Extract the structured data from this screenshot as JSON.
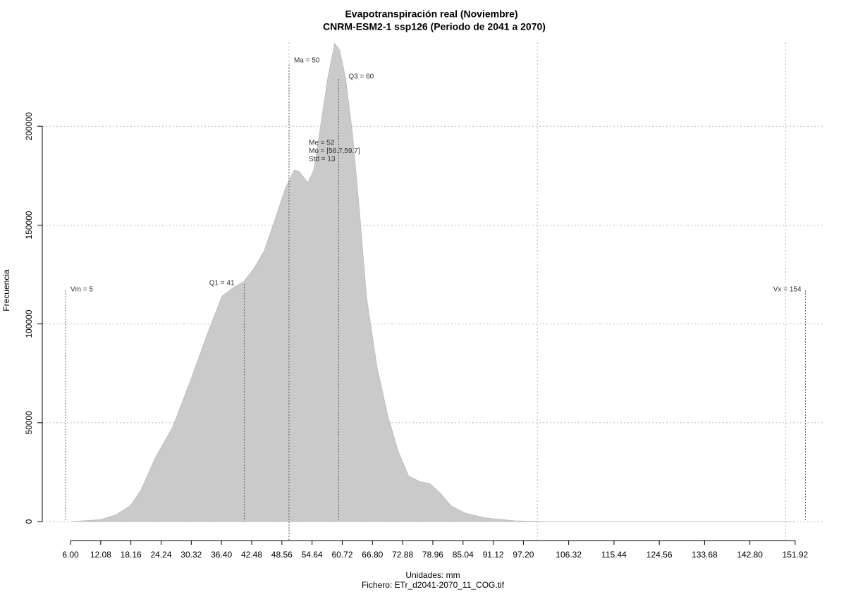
{
  "chart_data": {
    "type": "area",
    "title": "Evapotranspiración real (Noviembre)",
    "subtitle": "CNRM-ESM2-1 ssp126 (Periodo de 2041 a 2070)",
    "x_label": "Unidades: mm",
    "caption": "Fichero: ETr_d2041-2070_11_COG.tif",
    "y_label": "Frecuencia",
    "color": "#cacaca",
    "x": [
      6.0,
      12.1,
      15.2,
      18.1,
      20.2,
      23.0,
      26.6,
      30.1,
      33.7,
      36.5,
      38.6,
      40.9,
      42.9,
      45.0,
      47.2,
      49.3,
      51.1,
      52.1,
      53.8,
      55.0,
      56.4,
      57.8,
      59.2,
      60.2,
      61.4,
      62.8,
      64.2,
      65.6,
      67.7,
      69.9,
      72.0,
      74.1,
      76.3,
      78.4,
      80.5,
      82.7,
      85.5,
      89.7,
      95.4,
      102.5,
      151.9
    ],
    "values": [
      0,
      1000,
      3500,
      8200,
      16000,
      32000,
      48000,
      71000,
      96000,
      114000,
      118000,
      121500,
      128000,
      137000,
      153000,
      169000,
      178000,
      177000,
      171500,
      178000,
      201000,
      224500,
      242000,
      238500,
      224500,
      196000,
      157000,
      114000,
      78500,
      53500,
      35500,
      23000,
      20300,
      19200,
      14300,
      7800,
      4300,
      1800,
      400,
      0,
      0
    ],
    "xlim": [
      0.32,
      157.9
    ],
    "ylim": [
      -9600,
      242500
    ],
    "xticks": [
      {
        "value": 6,
        "label": "6.00"
      },
      12.08,
      18.16,
      24.24,
      30.32,
      {
        "value": 36.4,
        "label": "36.40"
      },
      42.48,
      48.56,
      54.64,
      60.72,
      {
        "value": 66.8,
        "label": "66.80"
      },
      72.88,
      78.96,
      85.04,
      91.12,
      {
        "value": 97.2,
        "label": "97.20"
      },
      106.32,
      115.44,
      124.56,
      133.68,
      {
        "value": 142.8,
        "label": "142.80"
      },
      151.92
    ],
    "yticks": [
      0,
      50000,
      100000,
      150000,
      200000
    ],
    "xgrid": [
      50,
      100,
      150
    ],
    "grid": true,
    "markers": [
      {
        "label": "Vm = 5",
        "x": 5
      },
      {
        "label": "Q1 = 41",
        "x": 41
      },
      {
        "label": "Ma = 50",
        "x": 50
      },
      {
        "label": "Q3 = 60",
        "x": 60
      },
      {
        "label": "Vx = 154",
        "x": 154
      }
    ],
    "annotations": [
      "Me = 52",
      "Mo = [56.7,59.7]",
      "Std = 13"
    ]
  }
}
